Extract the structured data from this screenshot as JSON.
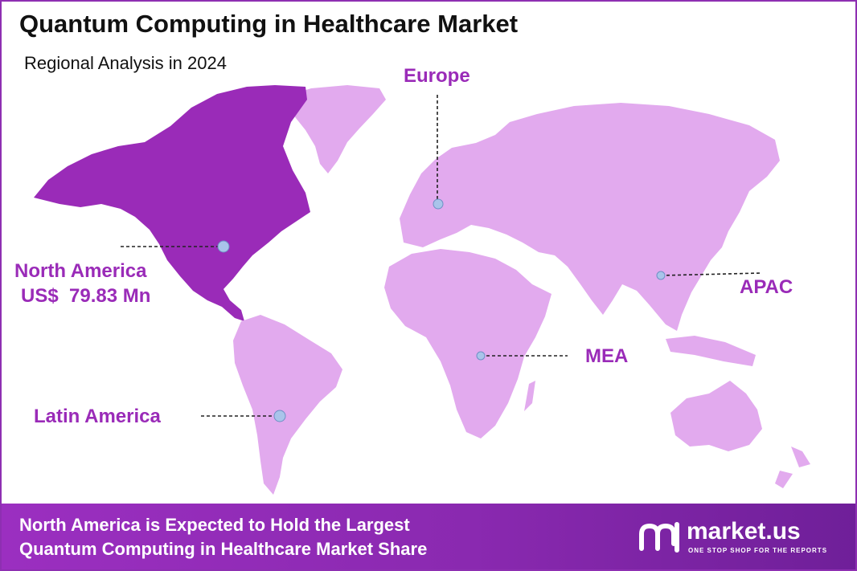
{
  "title": "Quantum Computing in Healthcare Market",
  "subtitle": "Regional Analysis in 2024",
  "colors": {
    "highlight_region": "#9a2bb8",
    "other_regions": "#e2aaee",
    "label_text": "#9a2bb8",
    "marker": "#a9c4ea",
    "footer_bg": "#8e2fb2"
  },
  "map": {
    "highlighted_region": "North America",
    "regions": [
      {
        "name": "North America",
        "value_label": "US$  79.83 Mn",
        "highlighted": true
      },
      {
        "name": "Europe",
        "highlighted": false
      },
      {
        "name": "APAC",
        "highlighted": false
      },
      {
        "name": "MEA",
        "highlighted": false
      },
      {
        "name": "Latin America",
        "highlighted": false
      }
    ]
  },
  "footer": {
    "line1": "North America is Expected to Hold the Largest",
    "line2": "Quantum Computing in Healthcare Market Share"
  },
  "logo": {
    "name": "market.us",
    "tagline": "ONE STOP SHOP FOR THE REPORTS",
    "icon": "market-us-logo-icon"
  }
}
